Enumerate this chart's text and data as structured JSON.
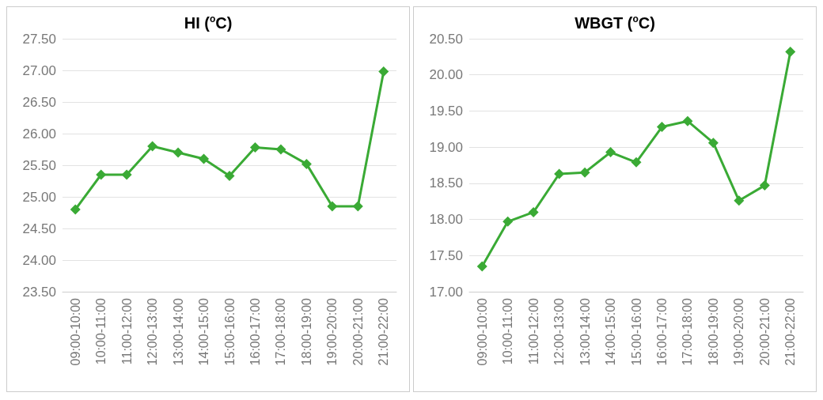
{
  "chart_data": [
    {
      "type": "line",
      "title": "HI ($^{o}$C)",
      "categories": [
        "09:00-10:00",
        "10:00-11:00",
        "11:00-12:00",
        "12:00-13:00",
        "13:00-14:00",
        "14:00-15:00",
        "15:00-16:00",
        "16:00-17:00",
        "17:00-18:00",
        "18:00-19:00",
        "19:00-20:00",
        "20:00-21:00",
        "21:00-22:00"
      ],
      "series": [
        {
          "color": "#3aaa35",
          "values": [
            24.8,
            25.35,
            25.35,
            25.8,
            25.7,
            25.6,
            25.33,
            25.78,
            25.75,
            25.52,
            24.85,
            24.85,
            26.98
          ]
        }
      ],
      "ylim": [
        23.5,
        27.5
      ],
      "yticks": [
        {
          "value": 23.5,
          "label": "23.50"
        },
        {
          "value": 24,
          "label": "24.00"
        },
        {
          "value": 24.5,
          "label": "24.50"
        },
        {
          "value": 25,
          "label": "25.00"
        },
        {
          "value": 25.5,
          "label": "25.50"
        },
        {
          "value": 26,
          "label": "26.00"
        },
        {
          "value": 26.5,
          "label": "26.50"
        },
        {
          "value": 27,
          "label": "27.00"
        },
        {
          "value": 27.5,
          "label": "27.50"
        }
      ],
      "grid": "y",
      "marker": "diamond",
      "line_style": "solid"
    },
    {
      "type": "line",
      "title": "WBGT ($^{o}$C)",
      "categories": [
        "09:00-10:00",
        "10:00-11:00",
        "11:00-12:00",
        "12:00-13:00",
        "13:00-14:00",
        "14:00-15:00",
        "15:00-16:00",
        "16:00-17:00",
        "17:00-18:00",
        "18:00-19:00",
        "19:00-20:00",
        "20:00-21:00",
        "21:00-22:00"
      ],
      "series": [
        {
          "color": "#3aaa35",
          "values": [
            17.35,
            17.97,
            18.1,
            18.63,
            18.65,
            18.93,
            18.79,
            19.28,
            19.36,
            19.06,
            18.26,
            18.47,
            20.32
          ]
        }
      ],
      "ylim": [
        17,
        20.5
      ],
      "yticks": [
        {
          "value": 17,
          "label": "17.00"
        },
        {
          "value": 17.5,
          "label": "17.50"
        },
        {
          "value": 18,
          "label": "18.00"
        },
        {
          "value": 18.5,
          "label": "18.50"
        },
        {
          "value": 19,
          "label": "19.00"
        },
        {
          "value": 19.5,
          "label": "19.50"
        },
        {
          "value": 20,
          "label": "20.00"
        },
        {
          "value": 20.5,
          "label": "20.50"
        }
      ],
      "grid": "y",
      "marker": "diamond",
      "line_style": "solid"
    }
  ]
}
